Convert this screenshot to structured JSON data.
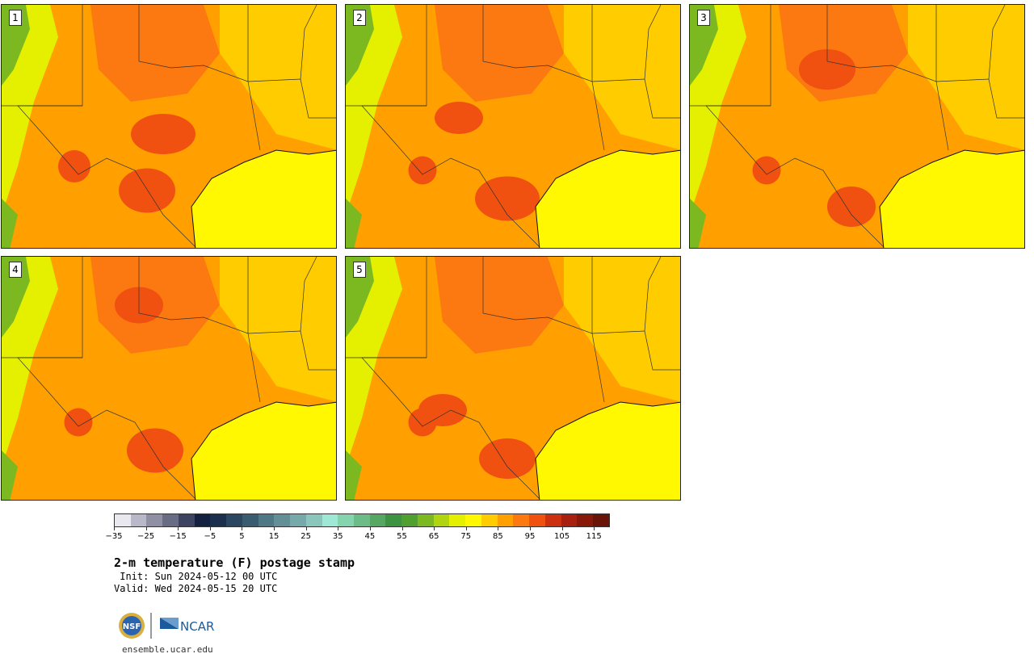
{
  "panels": [
    {
      "label": "1",
      "hot": [
        [
          180,
          230,
          70,
          55
        ],
        [
          200,
          160,
          80,
          50
        ],
        [
          90,
          200,
          40,
          40
        ]
      ]
    },
    {
      "label": "2",
      "hot": [
        [
          200,
          240,
          80,
          55
        ],
        [
          140,
          140,
          60,
          40
        ],
        [
          95,
          205,
          35,
          35
        ]
      ]
    },
    {
      "label": "3",
      "hot": [
        [
          200,
          250,
          60,
          50
        ],
        [
          170,
          80,
          70,
          50
        ],
        [
          95,
          205,
          35,
          35
        ]
      ]
    },
    {
      "label": "4",
      "hot": [
        [
          190,
          240,
          70,
          55
        ],
        [
          170,
          60,
          60,
          45
        ],
        [
          95,
          205,
          35,
          35
        ]
      ]
    },
    {
      "label": "5",
      "hot": [
        [
          200,
          250,
          70,
          50
        ],
        [
          120,
          190,
          60,
          40
        ],
        [
          95,
          205,
          35,
          35
        ]
      ]
    }
  ],
  "colorbar": {
    "colors": [
      "#e8e8ee",
      "#b8b8c8",
      "#9090a4",
      "#686c84",
      "#3c4462",
      "#142040",
      "#1c2e4e",
      "#2a4660",
      "#3a5c70",
      "#4e7884",
      "#629096",
      "#76aaaa",
      "#8ac6bc",
      "#9ee8d6",
      "#84d4ae",
      "#6cbc88",
      "#54a862",
      "#3c9440",
      "#50a030",
      "#7cb820",
      "#b0d410",
      "#e4f000",
      "#fff800",
      "#ffcc00",
      "#ffa000",
      "#fc7810",
      "#f05010",
      "#cc3010",
      "#a82010",
      "#881808",
      "#6a1408"
    ],
    "tick_labels": [
      "−35",
      "−25",
      "−15",
      "−5",
      "5",
      "15",
      "25",
      "35",
      "45",
      "55",
      "65",
      "75",
      "85",
      "95",
      "105",
      "115"
    ]
  },
  "title": "2-m temperature (F) postage stamp",
  "init": " Init: Sun 2024-05-12 00 UTC",
  "valid": "Valid: Wed 2024-05-15 20 UTC",
  "logos": {
    "nsf": "NSF",
    "ncar": "NCAR"
  },
  "site": "ensemble.ucar.edu"
}
